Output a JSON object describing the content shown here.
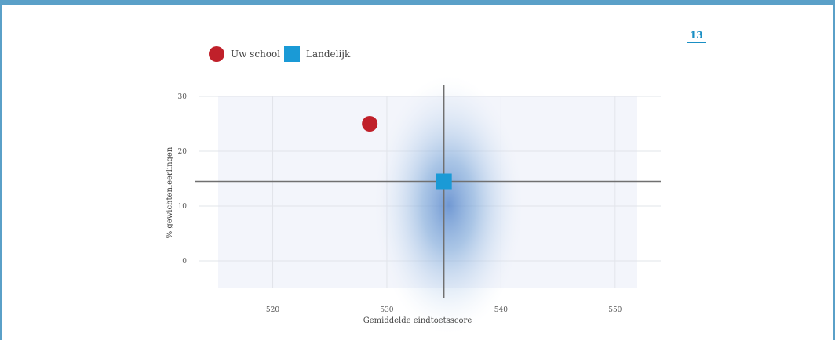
{
  "page": {
    "number": "13"
  },
  "chart_data": {
    "type": "scatter",
    "title": "",
    "xlabel": "Gemiddelde eindtoetsscore",
    "ylabel": "% gewichtenleerlingen",
    "xlim": [
      513.5,
      554
    ],
    "ylim": [
      -5,
      30
    ],
    "x_ticks": [
      520,
      530,
      540,
      550
    ],
    "y_ticks": [
      0,
      10,
      20,
      30
    ],
    "x_tick_labels": [
      "520",
      "530",
      "540",
      "550"
    ],
    "y_tick_labels": [
      "0",
      "10",
      "20",
      "30"
    ],
    "grid": true,
    "legend_position": "top-left",
    "reference_lines": {
      "x": 535,
      "y": 14.5
    },
    "series": [
      {
        "name": "Uw school",
        "marker": "circle",
        "color": "#c0202a",
        "x": [
          528.5
        ],
        "y": [
          25
        ]
      },
      {
        "name": "Landelijk",
        "marker": "square",
        "color": "#1a9ad6",
        "x": [
          535
        ],
        "y": [
          14.5
        ]
      }
    ]
  }
}
